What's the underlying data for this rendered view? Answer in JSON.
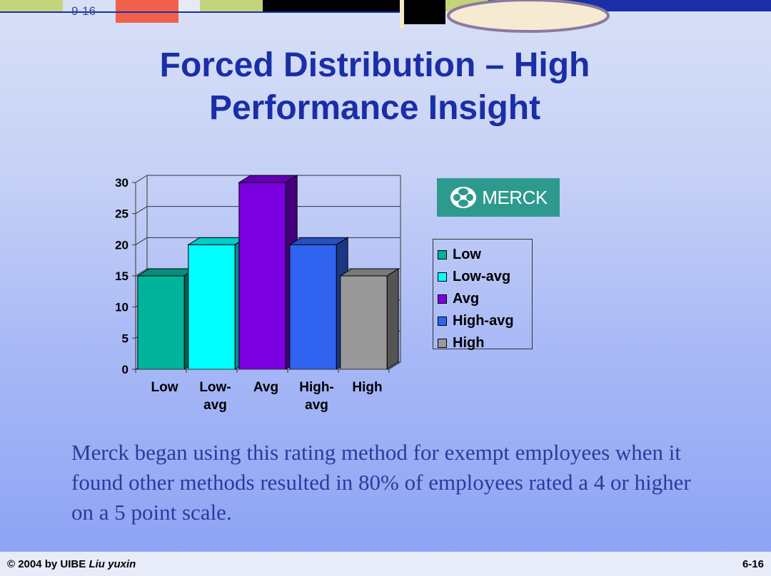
{
  "slide_number_top": "9-16",
  "title_lines": [
    "Forced Distribution – High",
    "Performance Insight"
  ],
  "logo_text": "MERCK",
  "colors": {
    "title": "#1a2ea8",
    "body": "#2c3a9c",
    "logo_bg": "#2e9a8d"
  },
  "chart_data": {
    "type": "bar",
    "categories": [
      "Low",
      "Low-avg",
      "Avg",
      "High-avg",
      "High"
    ],
    "category_tick_lines": [
      [
        "Low"
      ],
      [
        "Low-",
        "avg"
      ],
      [
        "Avg"
      ],
      [
        "High-",
        "avg"
      ],
      [
        "High"
      ]
    ],
    "values": [
      15,
      20,
      30,
      20,
      15
    ],
    "colors": [
      "#00b39a",
      "#00ffff",
      "#7b00e0",
      "#2f63f0",
      "#999999"
    ],
    "yticks": [
      "0",
      "5",
      "10",
      "15",
      "20",
      "25",
      "30"
    ],
    "ylim": [
      0,
      30
    ],
    "grid": true,
    "legend": [
      "Low",
      "Low-avg",
      "Avg",
      "High-avg",
      "High"
    ],
    "legend_position": "right"
  },
  "body_text": "Merck began using this rating method for exempt employees when it found other methods resulted in 80% of employees rated a 4 or higher on a 5 point scale.",
  "footer": {
    "copyright": "© 2004 by UIBE ",
    "author": "Liu yuxin",
    "page": "6-16"
  }
}
